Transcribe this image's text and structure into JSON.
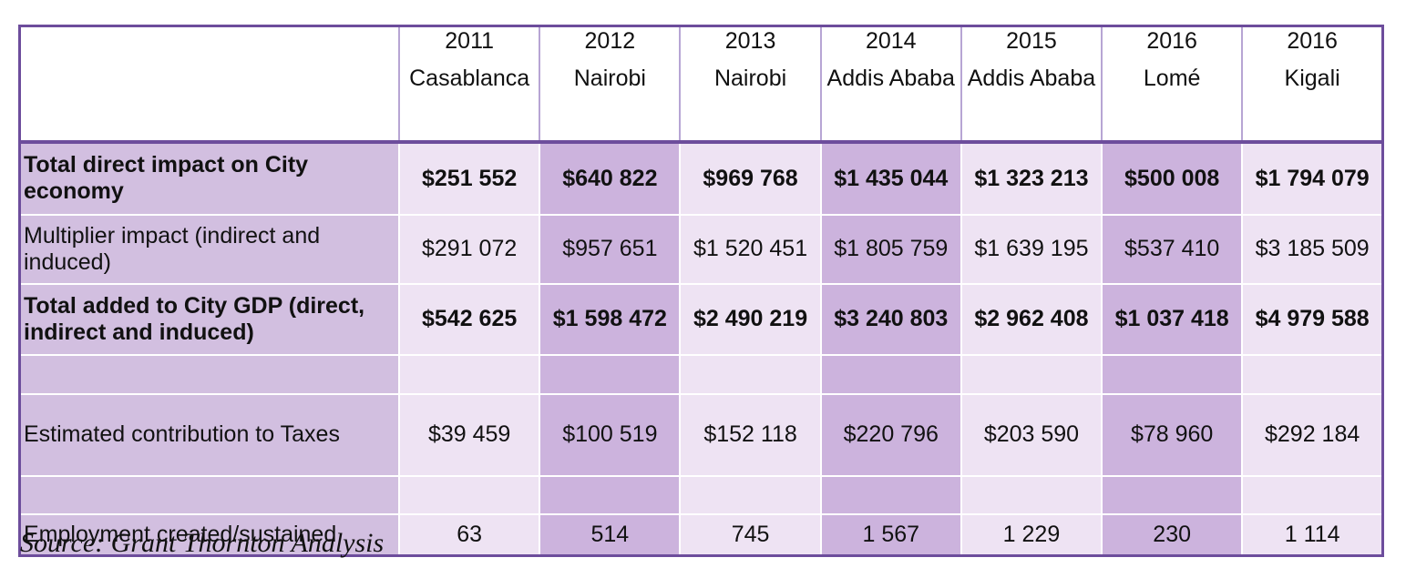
{
  "table": {
    "columns": [
      {
        "year": "2011",
        "city": "Casablanca"
      },
      {
        "year": "2012",
        "city": "Nairobi"
      },
      {
        "year": "2013",
        "city": "Nairobi"
      },
      {
        "year": "2014",
        "city": "Addis Ababa"
      },
      {
        "year": "2015",
        "city": "Addis Ababa"
      },
      {
        "year": "2016",
        "city": "Lomé"
      },
      {
        "year": "2016",
        "city": "Kigali"
      }
    ],
    "shading": [
      "light",
      "dark",
      "light",
      "dark",
      "light",
      "dark",
      "light"
    ],
    "rows": [
      {
        "label": "Total direct impact on City economy",
        "bold": true,
        "values": [
          "$251 552",
          "$640 822",
          "$969 768",
          "$1 435 044",
          "$1 323 213",
          "$500 008",
          "$1 794 079"
        ]
      },
      {
        "label": "Multiplier impact (indirect and induced)",
        "bold": false,
        "values": [
          "$291 072",
          "$957 651",
          "$1 520 451",
          "$1 805 759",
          "$1 639 195",
          "$537 410",
          "$3 185 509"
        ]
      },
      {
        "label": "Total added to City GDP (direct, indirect and induced)",
        "bold": true,
        "values": [
          "$542 625",
          "$1 598 472",
          "$2 490 219",
          "$3 240 803",
          "$2 962 408",
          "$1 037 418",
          "$4 979 588"
        ]
      },
      {
        "label": "",
        "bold": false,
        "values": [
          "",
          "",
          "",
          "",
          "",
          "",
          ""
        ]
      },
      {
        "label": "Estimated contribution to Taxes",
        "bold": false,
        "values": [
          "$39 459",
          "$100 519",
          "$152 118",
          "$220 796",
          "$203 590",
          "$78 960",
          "$292 184"
        ]
      },
      {
        "label": "",
        "bold": false,
        "values": [
          "",
          "",
          "",
          "",
          "",
          "",
          ""
        ]
      },
      {
        "label": "Employment created/sustained",
        "bold": false,
        "values": [
          "63",
          "514",
          "745",
          "1 567",
          "1 229",
          "230",
          "1 114"
        ]
      }
    ]
  },
  "source": "Source: Grant Thornton Analysis"
}
